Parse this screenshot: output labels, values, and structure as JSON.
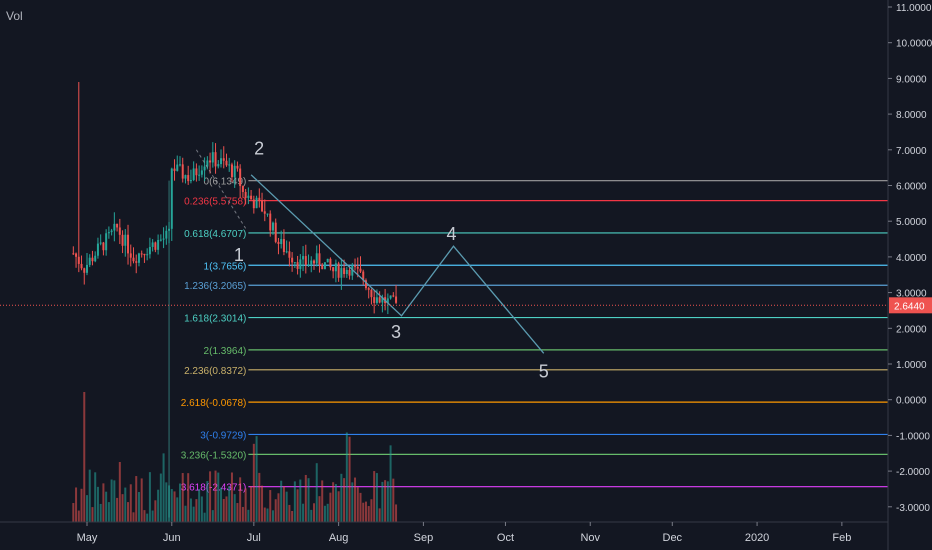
{
  "volume_label": "Vol",
  "colors": {
    "background": "#131722",
    "up": "#26a69a",
    "down": "#ef5350",
    "axis_text": "#d1d4dc",
    "grid": "#2a2e39",
    "price_line": "#ef5350",
    "wave": "#5b9bb0"
  },
  "chart_data": {
    "type": "candlestick",
    "title": "",
    "xlabel": "",
    "ylabel": "",
    "ylim": [
      -3.6,
      11.1
    ],
    "y_ticks": [
      "11.0000",
      "10.0000",
      "9.0000",
      "8.0000",
      "7.0000",
      "6.0000",
      "5.0000",
      "4.0000",
      "3.0000",
      "2.0000",
      "1.0000",
      "0.0000",
      "-1.0000",
      "-2.0000",
      "-3.0000"
    ],
    "x_ticks": [
      "May",
      "Jun",
      "Jul",
      "Aug",
      "Sep",
      "Oct",
      "Nov",
      "Dec",
      "2020",
      "Feb"
    ],
    "current_price": "2.6440",
    "price_series": {
      "x_start": "2019-04-26",
      "x_end": "2019-08-22",
      "anchors": [
        [
          "2019-04-26",
          4.1
        ],
        [
          "2019-04-30",
          3.7
        ],
        [
          "2019-05-05",
          4.2
        ],
        [
          "2019-05-12",
          4.8
        ],
        [
          "2019-05-18",
          4.0
        ],
        [
          "2019-05-24",
          4.3
        ],
        [
          "2019-05-31",
          4.6
        ],
        [
          "2019-06-01",
          6.5
        ],
        [
          "2019-06-08",
          6.2
        ],
        [
          "2019-06-14",
          6.8
        ],
        [
          "2019-06-20",
          6.6
        ],
        [
          "2019-06-25",
          6.3
        ],
        [
          "2019-06-27",
          5.8
        ],
        [
          "2019-07-05",
          5.3
        ],
        [
          "2019-07-10",
          4.4
        ],
        [
          "2019-07-18",
          3.8
        ],
        [
          "2019-07-25",
          3.9
        ],
        [
          "2019-07-30",
          3.6
        ],
        [
          "2019-08-05",
          3.7
        ],
        [
          "2019-08-10",
          3.4
        ],
        [
          "2019-08-14",
          2.9
        ],
        [
          "2019-08-22",
          2.64
        ]
      ],
      "spike": {
        "date": "2019-04-28",
        "high": 8.9
      }
    },
    "fib_levels": [
      {
        "label": "0.236(5.5758)",
        "value": 5.5758,
        "color": "#f23645"
      },
      {
        "label": "0.618(4.6707)",
        "value": 4.6707,
        "color": "#4dd0c4"
      },
      {
        "label": "1(3.7656)",
        "value": 3.7656,
        "color": "#4fc3f7"
      },
      {
        "label": "1.236(3.2065)",
        "value": 3.2065,
        "color": "#5a9fd4"
      },
      {
        "label": "1.618(2.3014)",
        "value": 2.3014,
        "color": "#4dd0c4"
      },
      {
        "label": "2(1.3964)",
        "value": 1.3964,
        "color": "#66bb6a"
      },
      {
        "label": "2.236(0.8372)",
        "value": 0.8372,
        "color": "#c9b16a"
      },
      {
        "label": "2.618(-0.0678)",
        "value": -0.0678,
        "color": "#ff9800"
      },
      {
        "label": "3(-0.9729)",
        "value": -0.9729,
        "color": "#2f80ed"
      },
      {
        "label": "3.236(-1.5320)",
        "value": -1.532,
        "color": "#66bb6a"
      },
      {
        "label": "3.618(-2.4371)",
        "value": -2.4371,
        "color": "#e040fb"
      }
    ],
    "top_level": {
      "label": "0(6.1349)",
      "value": 6.1349,
      "color": "#9e9e9e"
    },
    "waves": [
      {
        "label": "1",
        "date": "2019-06-27",
        "value": 4.5
      },
      {
        "label": "2",
        "date": "2019-06-30",
        "value": 6.7
      },
      {
        "label": "3",
        "date": "2019-08-22",
        "value": 2.4
      },
      {
        "label": "4",
        "date": "2019-09-12",
        "value": 4.3
      },
      {
        "label": "5",
        "date": "2019-10-15",
        "value": 1.3
      }
    ],
    "volume_ylim": [
      0,
      1
    ]
  }
}
